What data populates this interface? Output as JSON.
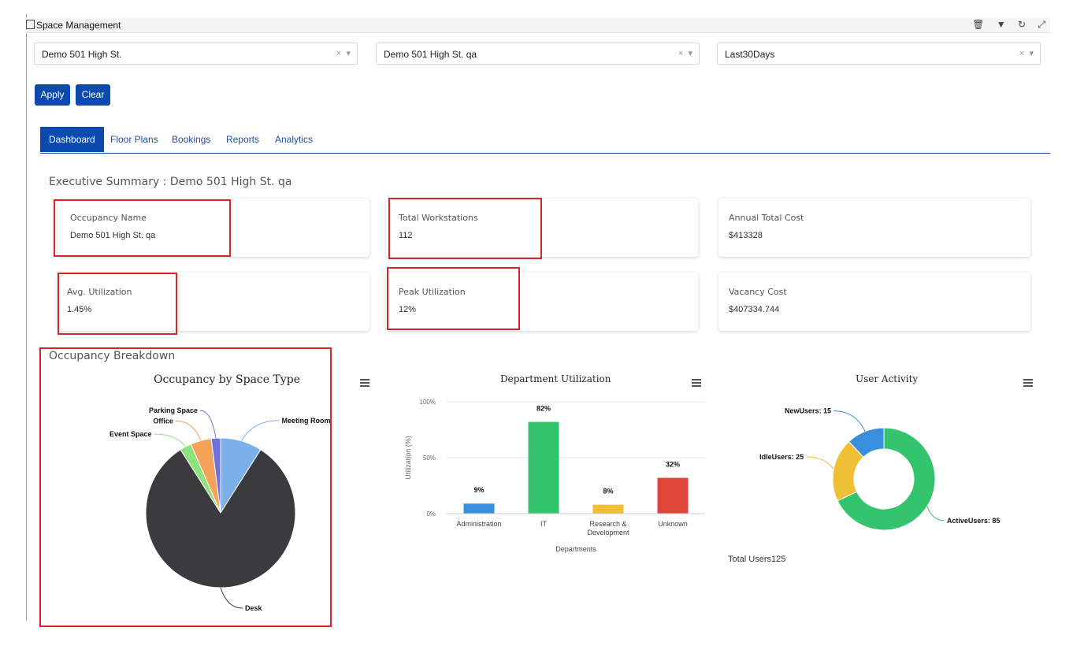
{
  "header": {
    "title": "Space Management",
    "tools": [
      "trash-icon",
      "filter-icon",
      "refresh-icon",
      "expand-icon"
    ]
  },
  "filters": [
    {
      "value": "Demo 501 High St."
    },
    {
      "value": "Demo 501 High St. qa"
    },
    {
      "value": "Last30Days"
    }
  ],
  "filter_controls": {
    "clear": "×",
    "caret": "▾"
  },
  "buttons": {
    "apply": "Apply",
    "clear": "Clear"
  },
  "tabs": [
    {
      "label": "Dashboard",
      "active": true
    },
    {
      "label": "Floor Plans",
      "active": false
    },
    {
      "label": "Bookings",
      "active": false
    },
    {
      "label": "Reports",
      "active": false
    },
    {
      "label": "Analytics",
      "active": false
    }
  ],
  "summary": {
    "title": "Executive Summary : Demo 501 High St. qa",
    "cards": [
      {
        "label": "Occupancy Name",
        "value": "Demo 501 High St. qa"
      },
      {
        "label": "Total Workstations",
        "value": "112"
      },
      {
        "label": "Annual Total Cost",
        "value": "$413328"
      },
      {
        "label": "Avg. Utilization",
        "value": "1.45%"
      },
      {
        "label": "Peak Utilization",
        "value": "12%"
      },
      {
        "label": "Vacancy Cost",
        "value": "$407334.744"
      }
    ]
  },
  "breakdown": {
    "title": "Occupancy Breakdown"
  },
  "colors": {
    "primary": "#0b4bb0",
    "highlight": "#d62728"
  },
  "chart_data": [
    {
      "type": "pie",
      "title": "Occupancy by Space Type",
      "slices": [
        {
          "name": "Meeting Room",
          "value": 9,
          "color": "#7cb0e8"
        },
        {
          "name": "Desk",
          "value": 82,
          "color": "#3a3a3f"
        },
        {
          "name": "Event Space",
          "value": 2.5,
          "color": "#8ee27a"
        },
        {
          "name": "Office",
          "value": 4.5,
          "color": "#f4a15a"
        },
        {
          "name": "Parking Space",
          "value": 2,
          "color": "#6f70e0"
        }
      ]
    },
    {
      "type": "bar",
      "title": "Department Utilization",
      "xlabel": "Departments",
      "ylabel": "Utilization (%)",
      "ylim": [
        0,
        100
      ],
      "yticks": [
        "100%",
        "50%",
        "0%"
      ],
      "categories": [
        "Administration",
        "IT",
        "Research & Development",
        "Unknown"
      ],
      "category_lines": [
        [
          "Administration"
        ],
        [
          "IT"
        ],
        [
          "Research &",
          "Development"
        ],
        [
          "Unknown"
        ]
      ],
      "values": [
        9,
        82,
        8,
        32
      ],
      "labels": [
        "9%",
        "82%",
        "8%",
        "32%"
      ],
      "colors": [
        "#3a8fdc",
        "#34c46e",
        "#efbf35",
        "#e0453a"
      ]
    },
    {
      "type": "pie",
      "subtype": "donut",
      "title": "User Activity",
      "slices": [
        {
          "name": "ActiveUsers",
          "value": 85,
          "color": "#34c46e",
          "label": "ActiveUsers: 85"
        },
        {
          "name": "IdleUsers",
          "value": 25,
          "color": "#efbf35",
          "label": "IdleUsers: 25"
        },
        {
          "name": "NewUsers",
          "value": 15,
          "color": "#3a8fdc",
          "label": "NewUsers: 15"
        }
      ],
      "total_label": "Total Users125"
    }
  ]
}
